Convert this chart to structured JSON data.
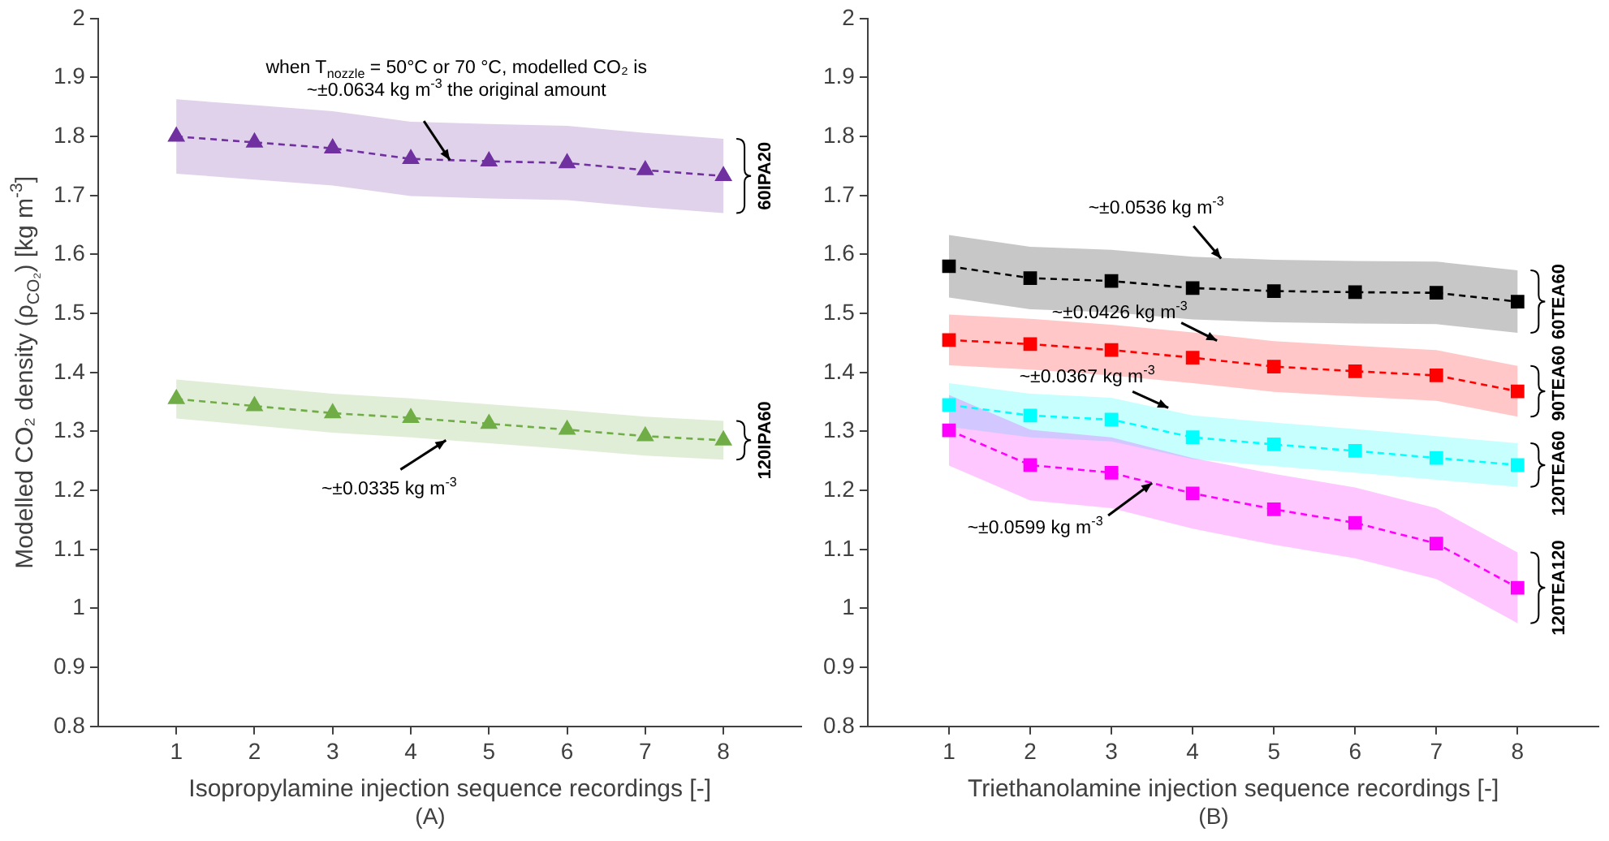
{
  "chart_data": [
    {
      "type": "line",
      "title": "(A)",
      "xlabel": "Isopropylamine injection sequence recordings [-]",
      "ylabel": "Modelled CO₂ density (ρ$_{CO₂}$) [kg m$^{-3}$]",
      "x": [
        1,
        2,
        3,
        4,
        5,
        6,
        7,
        8
      ],
      "xlim": [
        0,
        9
      ],
      "xticks": [
        1,
        2,
        3,
        4,
        5,
        6,
        7,
        8
      ],
      "ylim": [
        0.8,
        2
      ],
      "yticks": [
        0.8,
        0.9,
        1,
        1.1,
        1.2,
        1.3,
        1.4,
        1.5,
        1.6,
        1.7,
        1.8,
        1.9,
        2
      ],
      "marker": "triangle",
      "line_style": "dashed",
      "legend": false,
      "grid": false,
      "series": [
        {
          "name": "60IPA20",
          "color": "#7030a0",
          "values": [
            1.8,
            1.79,
            1.78,
            1.762,
            1.758,
            1.755,
            1.743,
            1.733
          ],
          "lower": [
            1.737,
            1.727,
            1.717,
            1.699,
            1.695,
            1.692,
            1.68,
            1.67
          ],
          "upper": [
            1.863,
            1.853,
            1.843,
            1.825,
            1.821,
            1.818,
            1.806,
            1.796
          ]
        },
        {
          "name": "120IPA60",
          "color": "#70ad47",
          "values": [
            1.355,
            1.343,
            1.331,
            1.323,
            1.313,
            1.303,
            1.292,
            1.285
          ],
          "lower": [
            1.322,
            1.31,
            1.298,
            1.29,
            1.28,
            1.27,
            1.259,
            1.252
          ],
          "upper": [
            1.388,
            1.376,
            1.364,
            1.356,
            1.346,
            1.336,
            1.325,
            1.318
          ]
        }
      ],
      "annotations": [
        {
          "text": "when T$_{nozzle}$ = 50°C or 70 °C, modelled CO₂ is ~±0.0634 kg m$^{-3}$ the original amount",
          "x": 4.5,
          "y": 1.76
        },
        {
          "text": "~±0.0335 kg m$^{-3}$",
          "x": 4.45,
          "y": 1.285
        }
      ]
    },
    {
      "type": "line",
      "title": "(B)",
      "xlabel": "Triethanolamine injection sequence recordings [-]",
      "x": [
        1,
        2,
        3,
        4,
        5,
        6,
        7,
        8
      ],
      "xlim": [
        0,
        9
      ],
      "xticks": [
        1,
        2,
        3,
        4,
        5,
        6,
        7,
        8
      ],
      "ylim": [
        0.8,
        2
      ],
      "yticks": [
        0.8,
        0.9,
        1,
        1.1,
        1.2,
        1.3,
        1.4,
        1.5,
        1.6,
        1.7,
        1.8,
        1.9,
        2
      ],
      "marker": "square",
      "line_style": "dashed",
      "legend": false,
      "grid": false,
      "series": [
        {
          "name": "60TEA60",
          "color": "#000000",
          "values": [
            1.58,
            1.56,
            1.555,
            1.543,
            1.538,
            1.536,
            1.535,
            1.52
          ],
          "lower": [
            1.527,
            1.507,
            1.502,
            1.49,
            1.485,
            1.483,
            1.482,
            1.467
          ],
          "upper": [
            1.633,
            1.613,
            1.608,
            1.596,
            1.591,
            1.589,
            1.588,
            1.573
          ]
        },
        {
          "name": "90TEA60",
          "color": "#ff0000",
          "values": [
            1.455,
            1.448,
            1.438,
            1.425,
            1.41,
            1.402,
            1.395,
            1.368
          ],
          "lower": [
            1.412,
            1.405,
            1.395,
            1.382,
            1.367,
            1.359,
            1.352,
            1.325
          ],
          "upper": [
            1.498,
            1.491,
            1.481,
            1.468,
            1.453,
            1.445,
            1.438,
            1.411
          ]
        },
        {
          "name": "120TEA60",
          "color": "#00ffff",
          "values": [
            1.345,
            1.327,
            1.32,
            1.29,
            1.278,
            1.267,
            1.255,
            1.243
          ],
          "lower": [
            1.308,
            1.29,
            1.283,
            1.253,
            1.241,
            1.23,
            1.218,
            1.206
          ],
          "upper": [
            1.382,
            1.364,
            1.357,
            1.327,
            1.315,
            1.304,
            1.292,
            1.28
          ]
        },
        {
          "name": "120TEA120",
          "color": "#ff00ff",
          "values": [
            1.302,
            1.243,
            1.23,
            1.195,
            1.168,
            1.145,
            1.11,
            1.035
          ],
          "lower": [
            1.242,
            1.183,
            1.17,
            1.135,
            1.108,
            1.085,
            1.05,
            0.975
          ],
          "upper": [
            1.362,
            1.303,
            1.29,
            1.255,
            1.228,
            1.205,
            1.17,
            1.095
          ]
        }
      ],
      "annotations": [
        {
          "text": "~±0.0536 kg m$^{-3}$",
          "x": 4.35,
          "y": 1.593
        },
        {
          "text": "~±0.0426 kg m$^{-3}$",
          "x": 4.3,
          "y": 1.454
        },
        {
          "text": "~±0.0367 kg m$^{-3}$",
          "x": 3.7,
          "y": 1.34
        },
        {
          "text": "~±0.0599 kg m$^{-3}$",
          "x": 3.5,
          "y": 1.2125
        }
      ]
    }
  ]
}
